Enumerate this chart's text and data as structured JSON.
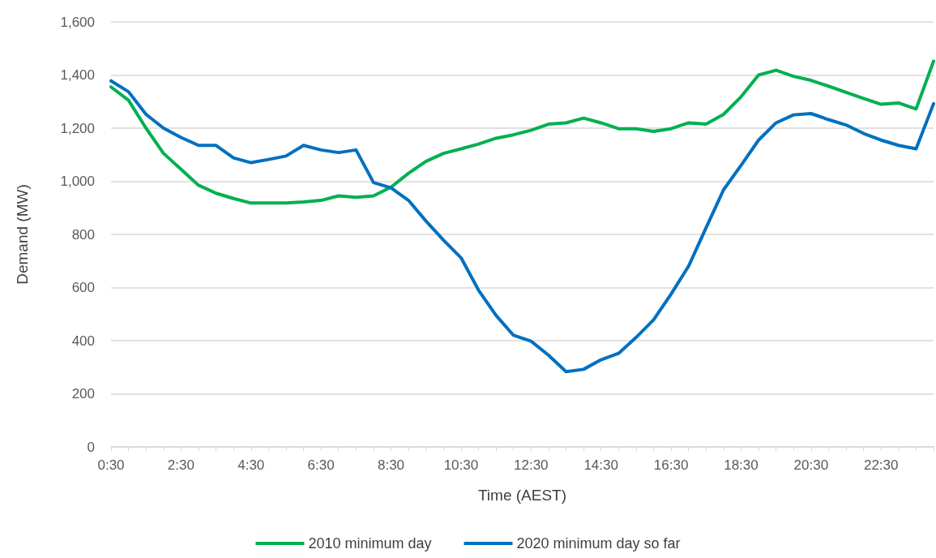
{
  "chart_data": {
    "type": "line",
    "xlabel": "Time (AEST)",
    "ylabel": "Demand (MW)",
    "categories": [
      "0:30",
      null,
      null,
      null,
      "2:30",
      null,
      null,
      null,
      "4:30",
      null,
      null,
      null,
      "6:30",
      null,
      null,
      null,
      "8:30",
      null,
      null,
      null,
      "10:30",
      null,
      null,
      null,
      "12:30",
      null,
      null,
      null,
      "14:30",
      null,
      null,
      null,
      "16:30",
      null,
      null,
      null,
      "18:30",
      null,
      null,
      null,
      "20:30",
      null,
      null,
      null,
      "22:30",
      null,
      null,
      null
    ],
    "series": [
      {
        "name": "2010 minimum day",
        "color": "#00b050",
        "values": [
          1355,
          1305,
          1200,
          1105,
          1045,
          985,
          955,
          935,
          918,
          918,
          918,
          922,
          928,
          945,
          940,
          945,
          978,
          1030,
          1075,
          1105,
          1122,
          1140,
          1162,
          1175,
          1192,
          1215,
          1220,
          1238,
          1220,
          1198,
          1198,
          1188,
          1198,
          1220,
          1215,
          1252,
          1318,
          1400,
          1418,
          1395,
          1380,
          1358,
          1335,
          1312,
          1290,
          1295,
          1272,
          1452
        ]
      },
      {
        "name": "2020 minimum day so far",
        "color": "#0070c0",
        "values": [
          1378,
          1337,
          1252,
          1200,
          1165,
          1135,
          1135,
          1088,
          1070,
          1082,
          1095,
          1135,
          1118,
          1108,
          1118,
          995,
          975,
          928,
          850,
          778,
          712,
          590,
          495,
          420,
          398,
          345,
          283,
          292,
          328,
          352,
          412,
          478,
          575,
          680,
          825,
          968,
          1060,
          1155,
          1220,
          1250,
          1255,
          1232,
          1212,
          1180,
          1155,
          1135,
          1122,
          1292
        ]
      }
    ],
    "ylim": [
      0,
      1600
    ],
    "yticks": [
      0,
      200,
      400,
      600,
      800,
      {
        "value": 1000,
        "label": "1,000"
      },
      {
        "value": 1200,
        "label": "1,200"
      },
      {
        "value": 1400,
        "label": "1,400"
      },
      {
        "value": 1600,
        "label": "1,600"
      }
    ],
    "grid": "y",
    "legend": "bottom",
    "marker": "none",
    "line_style": "solid"
  }
}
